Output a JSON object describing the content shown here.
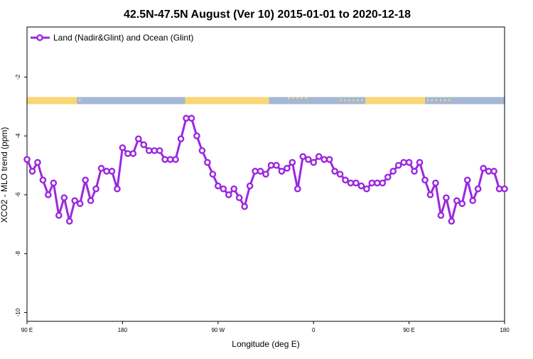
{
  "chart_data": {
    "type": "line",
    "title": "42.5N-47.5N August (Ver 10)   2015-01-01 to 2020-12-18",
    "xlabel": "Longitude (deg E)",
    "ylabel": "XCO2 - MLO trend (ppm)",
    "xlim": [
      90,
      540
    ],
    "ylim": [
      -10.3,
      -0.3
    ],
    "x_ticks": [
      {
        "value": 90,
        "label": "90 E"
      },
      {
        "value": 180,
        "label": "180"
      },
      {
        "value": 270,
        "label": "90 W"
      },
      {
        "value": 360,
        "label": "0"
      },
      {
        "value": 450,
        "label": "90 E"
      },
      {
        "value": 540,
        "label": "180"
      }
    ],
    "y_ticks": [
      {
        "value": -2,
        "label": "-2"
      },
      {
        "value": -4,
        "label": "-4"
      },
      {
        "value": -6,
        "label": "-6"
      },
      {
        "value": -8,
        "label": "-8"
      },
      {
        "value": -10,
        "label": "-10"
      }
    ],
    "legend": {
      "position": "top-left"
    },
    "series": [
      {
        "name": "Land (Nadir&Glint) and Ocean (Glint)",
        "color": "#9b27e0",
        "x": [
          90,
          95,
          100,
          105,
          110,
          115,
          120,
          125,
          130,
          135,
          140,
          145,
          150,
          155,
          160,
          165,
          170,
          175,
          180,
          185,
          190,
          195,
          200,
          205,
          210,
          215,
          220,
          225,
          230,
          235,
          240,
          245,
          250,
          255,
          260,
          265,
          270,
          275,
          280,
          285,
          290,
          295,
          300,
          305,
          310,
          315,
          320,
          325,
          330,
          335,
          340,
          345,
          350,
          355,
          360,
          365,
          370,
          375,
          380,
          385,
          390,
          395,
          400,
          405,
          410,
          415,
          420,
          425,
          430,
          435,
          440,
          445,
          450,
          455,
          460,
          465,
          470,
          475,
          480,
          485,
          490,
          495,
          500,
          505,
          510,
          515,
          520,
          525,
          530,
          535,
          540
        ],
        "y": [
          -4.8,
          -5.2,
          -4.9,
          -5.5,
          -6.0,
          -5.6,
          -6.7,
          -6.1,
          -6.9,
          -6.2,
          -6.3,
          -5.5,
          -6.2,
          -5.8,
          -5.1,
          -5.2,
          -5.2,
          -5.8,
          -4.4,
          -4.6,
          -4.6,
          -4.1,
          -4.3,
          -4.5,
          -4.5,
          -4.5,
          -4.8,
          -4.8,
          -4.8,
          -4.1,
          -3.4,
          -3.4,
          -4.0,
          -4.5,
          -4.9,
          -5.3,
          -5.7,
          -5.8,
          -6.0,
          -5.8,
          -6.1,
          -6.4,
          -5.7,
          -5.2,
          -5.2,
          -5.3,
          -5.0,
          -5.0,
          -5.2,
          -5.1,
          -4.9,
          -5.8,
          -4.7,
          -4.8,
          -4.9,
          -4.7,
          -4.8,
          -4.8,
          -5.2,
          -5.3,
          -5.5,
          -5.6,
          -5.6,
          -5.7,
          -5.8,
          -5.6,
          -5.6,
          -5.6,
          -5.4,
          -5.2,
          -5.0,
          -4.9,
          -4.9,
          -5.2,
          -4.9,
          -5.5,
          -6.0,
          -5.6,
          -6.7,
          -6.1,
          -6.9,
          -6.2,
          -6.3,
          -5.5,
          -6.2,
          -5.8,
          -5.1,
          -5.2,
          -5.2,
          -5.8,
          -5.8
        ]
      }
    ],
    "surface_strip": {
      "y": -2.8,
      "land_color": "#f9d773",
      "ocean_color": "#a4b7d4",
      "segments": [
        {
          "from": 90,
          "to": 137,
          "kind": "land"
        },
        {
          "from": 137,
          "to": 142,
          "kind": "mixed"
        },
        {
          "from": 142,
          "to": 239,
          "kind": "ocean"
        },
        {
          "from": 239,
          "to": 318,
          "kind": "land"
        },
        {
          "from": 318,
          "to": 336,
          "kind": "ocean"
        },
        {
          "from": 336,
          "to": 355,
          "kind": "mixed"
        },
        {
          "from": 355,
          "to": 383,
          "kind": "ocean"
        },
        {
          "from": 383,
          "to": 409,
          "kind": "mixed"
        },
        {
          "from": 409,
          "to": 465,
          "kind": "land"
        },
        {
          "from": 465,
          "to": 490,
          "kind": "mixed"
        },
        {
          "from": 490,
          "to": 540,
          "kind": "ocean"
        }
      ]
    }
  }
}
